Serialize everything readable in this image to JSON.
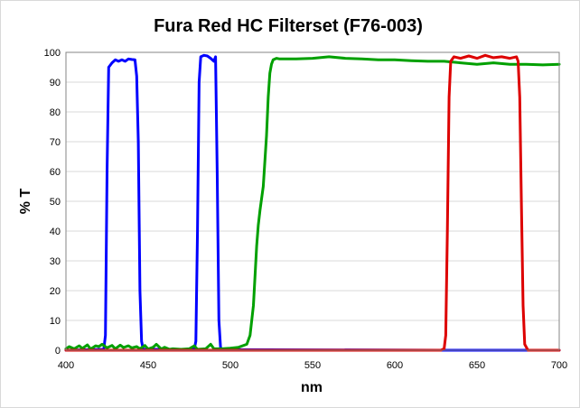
{
  "chart_data": {
    "type": "line",
    "title": "Fura Red HC Filterset (F76-003)",
    "xlabel": "nm",
    "ylabel": "% T",
    "xlim": [
      400,
      700
    ],
    "ylim": [
      0,
      100
    ],
    "xticks": [
      400,
      450,
      500,
      550,
      600,
      650,
      700
    ],
    "yticks": [
      0,
      10,
      20,
      30,
      40,
      50,
      60,
      70,
      80,
      90,
      100
    ],
    "grid": "horizontal",
    "legend": "none",
    "series": [
      {
        "color": "#0000ff",
        "x": [
          400,
          423,
          424,
          425,
          426,
          428,
          430,
          432,
          434,
          436,
          438,
          440,
          442,
          443,
          444,
          445,
          446,
          447,
          478,
          479,
          480,
          481,
          482,
          484,
          486,
          488,
          490,
          491,
          492,
          493,
          494,
          495,
          630,
          700
        ],
        "y": [
          0,
          0.3,
          5,
          60,
          95,
          96.5,
          97.5,
          97,
          97.5,
          97,
          97.8,
          97.6,
          97.5,
          92,
          70,
          20,
          3,
          0.3,
          0.3,
          3,
          40,
          90,
          98.5,
          99,
          98.8,
          98,
          97,
          98.5,
          60,
          10,
          1,
          0.2,
          0,
          0
        ]
      },
      {
        "color": "#00a000",
        "x": [
          400,
          402,
          405,
          408,
          410,
          413,
          415,
          418,
          420,
          422,
          425,
          428,
          430,
          433,
          435,
          438,
          440,
          443,
          445,
          448,
          450,
          453,
          455,
          458,
          460,
          463,
          465,
          470,
          475,
          478,
          480,
          485,
          488,
          490,
          495,
          500,
          505,
          510,
          512,
          514,
          516,
          517,
          518,
          520,
          522,
          523,
          524,
          525,
          526,
          528,
          530,
          540,
          550,
          560,
          570,
          580,
          590,
          600,
          610,
          620,
          630,
          640,
          650,
          660,
          670,
          680,
          690,
          700
        ],
        "y": [
          0.5,
          1.2,
          0.5,
          1.5,
          0.6,
          1.8,
          0.4,
          1.5,
          1.2,
          2,
          0.8,
          1.6,
          0.5,
          1.7,
          0.9,
          1.5,
          0.8,
          1.2,
          0.5,
          1.6,
          0.4,
          1,
          2,
          0.4,
          1,
          0.3,
          0.5,
          0.3,
          0.5,
          1.5,
          0.3,
          0.5,
          2,
          0.5,
          0.5,
          0.7,
          1,
          2,
          5,
          15,
          35,
          42,
          47,
          55,
          72,
          85,
          93,
          96,
          97.5,
          98,
          97.8,
          97.8,
          98,
          98.5,
          98,
          97.8,
          97.5,
          97.5,
          97.2,
          97,
          97,
          96.5,
          96,
          96.5,
          96,
          96,
          95.8,
          96
        ]
      },
      {
        "color": "#dd0000",
        "x": [
          400,
          628,
          630,
          631,
          632,
          633,
          634,
          636,
          640,
          645,
          650,
          655,
          660,
          665,
          670,
          674,
          675,
          676,
          677,
          678,
          679,
          681,
          700
        ],
        "y": [
          0,
          0,
          0.5,
          5,
          40,
          85,
          97,
          98.5,
          98,
          98.8,
          98,
          99,
          98.2,
          98.5,
          98,
          98.5,
          97,
          85,
          50,
          15,
          2,
          0,
          0
        ]
      }
    ]
  }
}
